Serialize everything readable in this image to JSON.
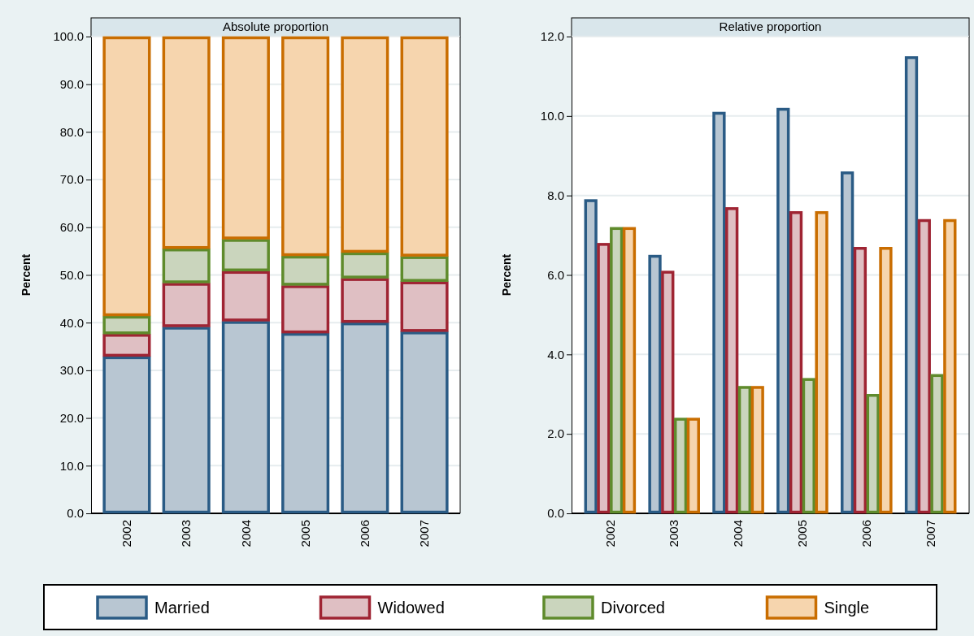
{
  "chart_data": [
    {
      "type": "bar",
      "title": "Absolute proportion",
      "ylabel": "Percent",
      "categories": [
        "2002",
        "2003",
        "2004",
        "2005",
        "2006",
        "2007"
      ],
      "stacked": true,
      "ylim": [
        0,
        100
      ],
      "yticks": [
        {
          "value": 0,
          "label": "0.0"
        },
        {
          "value": 10,
          "label": "10.0"
        },
        {
          "value": 20,
          "label": "20.0"
        },
        {
          "value": 30,
          "label": "30.0"
        },
        {
          "value": 40,
          "label": "40.0"
        },
        {
          "value": 50,
          "label": "50.0"
        },
        {
          "value": 60,
          "label": "60.0"
        },
        {
          "value": 70,
          "label": "70.0"
        },
        {
          "value": 80,
          "label": "80.0"
        },
        {
          "value": 90,
          "label": "90.0"
        },
        {
          "value": 100,
          "label": "100.0"
        }
      ],
      "grid": "y",
      "legend": "bottom",
      "series": [
        {
          "name": "Married",
          "color": "#b8c6d2",
          "values": [
            32.9,
            39.1,
            40.3,
            37.8,
            40.0,
            38.1
          ]
        },
        {
          "name": "Widowed",
          "color": "#dfbfc3",
          "values": [
            4.7,
            9.2,
            10.5,
            10.0,
            9.3,
            10.5
          ]
        },
        {
          "name": "Divorced",
          "color": "#cad5bd",
          "values": [
            3.8,
            7.2,
            6.7,
            6.2,
            5.4,
            5.3
          ]
        },
        {
          "name": "Single",
          "color": "#f6d5ae",
          "values": [
            58.6,
            44.5,
            42.5,
            46.0,
            45.3,
            46.1
          ]
        }
      ]
    },
    {
      "type": "bar",
      "title": "Relative proportion",
      "ylabel": "Percent",
      "categories": [
        "2002",
        "2003",
        "2004",
        "2005",
        "2006",
        "2007"
      ],
      "ylim": [
        0,
        12
      ],
      "yticks": [
        {
          "value": 0,
          "label": "0.0"
        },
        {
          "value": 2,
          "label": "2.0"
        },
        {
          "value": 4,
          "label": "4.0"
        },
        {
          "value": 6,
          "label": "6.0"
        },
        {
          "value": 8,
          "label": "8.0"
        },
        {
          "value": 10,
          "label": "10.0"
        },
        {
          "value": 12,
          "label": "12.0"
        }
      ],
      "grid": "y",
      "series": [
        {
          "color": "#b8c6d2",
          "values": [
            7.9,
            6.5,
            10.1,
            10.2,
            8.6,
            11.5
          ]
        },
        {
          "color": "#dfbfc3",
          "values": [
            6.8,
            6.1,
            7.7,
            7.6,
            6.7,
            7.4
          ]
        },
        {
          "color": "#cad5bd",
          "values": [
            7.2,
            2.4,
            3.2,
            3.4,
            3.0,
            3.5
          ]
        },
        {
          "color": "#f6d5ae",
          "values": [
            7.2,
            2.4,
            3.2,
            7.6,
            6.7,
            7.4
          ]
        }
      ]
    }
  ]
}
